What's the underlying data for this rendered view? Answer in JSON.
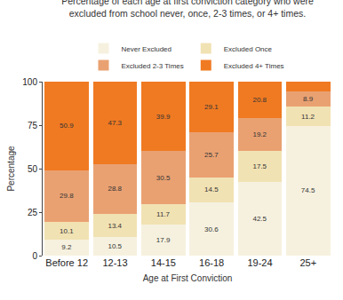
{
  "chart_data": {
    "type": "bar",
    "title": "Percentage of each age at first conviction category who were excluded from school never, once, 2-3 times, or 4+ times.",
    "x_label": "Age at First Conviction",
    "y_label": "Percentage",
    "categories": [
      "Before 12",
      "12-13",
      "14-15",
      "16-18",
      "19-24",
      "25+"
    ],
    "series": [
      {
        "name": "Never Excluded",
        "color": "#f6f1df",
        "values": [
          9.2,
          10.5,
          17.9,
          30.6,
          42.5,
          74.5
        ]
      },
      {
        "name": "Excluded Once",
        "color": "#f1e2b3",
        "values": [
          10.1,
          13.4,
          11.7,
          14.5,
          17.5,
          11.2
        ]
      },
      {
        "name": "Excluded 2-3 Times",
        "color": "#e9a172",
        "values": [
          29.8,
          28.8,
          30.5,
          25.7,
          19.2,
          8.9
        ]
      },
      {
        "name": "Excluded 4+ Times",
        "color": "#f07a22",
        "values": [
          50.9,
          47.3,
          39.9,
          29.1,
          20.8,
          5.4
        ]
      }
    ],
    "ylim": [
      0,
      100
    ],
    "yticks": [
      0,
      25,
      50,
      75,
      100
    ],
    "grid": false,
    "stacked": true,
    "data_labels": true,
    "legend": "top"
  }
}
